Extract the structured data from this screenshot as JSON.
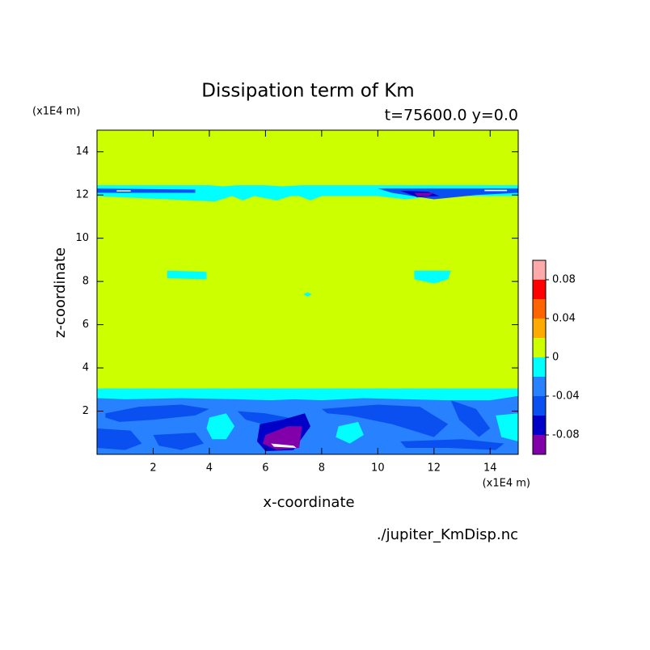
{
  "chart_data": {
    "type": "contour",
    "title": "Dissipation term of Km",
    "subtitle": "t=75600.0 y=0.0",
    "x_label": "x-coordinate",
    "y_label": "z-coordinate",
    "x_unit": "(x1E4 m)",
    "y_unit": "(x1E4 m)",
    "source": "./jupiter_KmDisp.nc",
    "xlim": [
      0,
      15
    ],
    "ylim": [
      0,
      15
    ],
    "xticks": [
      2,
      4,
      6,
      8,
      10,
      12,
      14
    ],
    "yticks": [
      2,
      4,
      6,
      8,
      10,
      12,
      14
    ],
    "background_level": 0.01,
    "levels": [
      -0.1,
      -0.08,
      -0.06,
      -0.04,
      -0.02,
      0,
      0.02,
      0.04,
      0.06,
      0.08,
      0.1
    ],
    "colors": [
      "#8200aa",
      "#0000c8",
      "#0a50f0",
      "#2882ff",
      "#00ffff",
      "#ccff00",
      "#ffaa00",
      "#ff6400",
      "#ff0000",
      "#ffaaaa"
    ],
    "clim": [
      -0.1,
      0.1
    ],
    "cticks": [
      -0.08,
      -0.04,
      0,
      0.04,
      0.08
    ],
    "regions": [
      {
        "level": -0.01,
        "x": [
          0,
          15,
          15,
          13,
          10.5,
          9,
          7.5,
          6.5,
          5,
          3,
          1,
          0
        ],
        "z": [
          3.05,
          3.05,
          0,
          0,
          0,
          0,
          0,
          0,
          0,
          0,
          0,
          0
        ]
      },
      {
        "level": -0.03,
        "x": [
          0,
          1,
          3,
          5,
          6.2,
          7,
          8,
          9.5,
          11,
          12.5,
          14,
          15,
          15,
          0
        ],
        "z": [
          2.6,
          2.55,
          2.6,
          2.55,
          2.5,
          2.55,
          2.5,
          2.6,
          2.55,
          2.5,
          2.5,
          2.7,
          0,
          0
        ]
      },
      {
        "level": -0.01,
        "x": [
          4.0,
          4.6,
          4.9,
          4.6,
          4.1,
          3.9
        ],
        "z": [
          1.7,
          1.9,
          1.3,
          0.7,
          0.7,
          1.2
        ]
      },
      {
        "level": -0.01,
        "x": [
          8.6,
          9.3,
          9.5,
          9.0,
          8.5
        ],
        "z": [
          1.3,
          1.5,
          0.9,
          0.5,
          0.8
        ]
      },
      {
        "level": -0.01,
        "x": [
          14.2,
          15,
          15,
          14.4
        ],
        "z": [
          1.8,
          1.9,
          0.6,
          0.8
        ]
      },
      {
        "level": -0.05,
        "x": [
          0.3,
          1.5,
          3,
          4,
          3.5,
          2,
          0.8,
          0.3
        ],
        "z": [
          1.9,
          2.2,
          2.3,
          2.1,
          1.8,
          1.6,
          1.5,
          1.7
        ]
      },
      {
        "level": -0.05,
        "x": [
          0,
          1.2,
          1.6,
          1.0,
          0
        ],
        "z": [
          1.2,
          1.1,
          0.5,
          0.2,
          0.3
        ]
      },
      {
        "level": -0.05,
        "x": [
          5.0,
          6.0,
          7.2,
          7.6,
          7.2,
          6.2,
          5.3
        ],
        "z": [
          2.0,
          1.9,
          1.6,
          1.2,
          1.0,
          1.3,
          1.6
        ]
      },
      {
        "level": -0.05,
        "x": [
          8.0,
          10,
          11.5,
          12.5,
          12,
          10.5,
          9,
          8.2
        ],
        "z": [
          2.1,
          2.3,
          2.2,
          1.4,
          0.8,
          1.4,
          1.8,
          1.9
        ]
      },
      {
        "level": -0.05,
        "x": [
          12.6,
          13.5,
          14,
          13.6,
          12.9
        ],
        "z": [
          2.5,
          2.1,
          1.2,
          0.8,
          1.6
        ]
      },
      {
        "level": -0.05,
        "x": [
          2.0,
          3.5,
          3.8,
          3.0,
          2.2
        ],
        "z": [
          0.9,
          1.0,
          0.5,
          0.2,
          0.4
        ]
      },
      {
        "level": -0.05,
        "x": [
          10.8,
          13,
          14.5,
          14.2,
          12.5,
          11
        ],
        "z": [
          0.6,
          0.7,
          0.5,
          0.2,
          0.3,
          0.3
        ]
      },
      {
        "level": -0.07,
        "x": [
          5.8,
          6.6,
          7.4,
          7.6,
          7.0,
          6.0,
          5.7
        ],
        "z": [
          1.4,
          1.6,
          1.9,
          1.3,
          0.2,
          0.15,
          0.6
        ]
      },
      {
        "level": -0.09,
        "x": [
          6.0,
          6.8,
          7.3,
          7.2,
          6.4,
          5.9
        ],
        "z": [
          0.9,
          1.3,
          1.3,
          0.3,
          0.2,
          0.5
        ]
      },
      {
        "level": -0.11,
        "x": [
          6.2,
          7.0,
          7.1,
          6.3
        ],
        "z": [
          0.5,
          0.4,
          0.3,
          0.35
        ]
      },
      {
        "level": -0.01,
        "x": [
          0,
          4,
          4.5,
          5,
          6,
          6.6,
          7.3,
          7.8,
          10,
          15,
          15,
          12,
          11,
          10,
          8,
          7.6,
          7.2,
          6.9,
          6.4,
          5.6,
          5.2,
          4.8,
          4.2,
          0
        ],
        "z": [
          12.45,
          12.45,
          12.4,
          12.45,
          12.45,
          12.4,
          12.45,
          12.45,
          12.45,
          12.45,
          11.95,
          11.95,
          11.8,
          11.95,
          11.95,
          11.75,
          11.95,
          11.95,
          11.75,
          11.95,
          11.75,
          11.95,
          11.7,
          11.95
        ]
      },
      {
        "level": -0.05,
        "x": [
          0,
          3.5,
          3.5,
          0
        ],
        "z": [
          12.3,
          12.25,
          12.1,
          12.1
        ]
      },
      {
        "level": -0.05,
        "x": [
          10.0,
          15,
          15,
          13.5,
          12,
          10.5
        ],
        "z": [
          12.3,
          12.3,
          12.1,
          12.0,
          11.8,
          12.1
        ]
      },
      {
        "level": -0.07,
        "x": [
          10.8,
          11.8,
          12.2,
          11.4
        ],
        "z": [
          12.2,
          12.15,
          11.95,
          11.9
        ]
      },
      {
        "level": -0.09,
        "x": [
          11.3,
          12.0,
          11.8,
          11.4
        ],
        "z": [
          12.1,
          12.1,
          11.95,
          11.95
        ]
      },
      {
        "level": -0.11,
        "x": [
          0.7,
          1.2,
          1.2,
          0.7
        ],
        "z": [
          12.22,
          12.22,
          12.16,
          12.16
        ]
      },
      {
        "level": -0.11,
        "x": [
          13.8,
          14.6,
          14.6,
          13.8
        ],
        "z": [
          12.24,
          12.24,
          12.18,
          12.18
        ]
      },
      {
        "level": -0.01,
        "x": [
          2.5,
          3.9,
          3.9,
          2.5
        ],
        "z": [
          8.5,
          8.45,
          8.1,
          8.15
        ]
      },
      {
        "level": -0.01,
        "x": [
          11.3,
          12.6,
          12.5,
          12.0,
          11.3
        ],
        "z": [
          8.5,
          8.5,
          8.1,
          7.9,
          8.1
        ]
      },
      {
        "level": -0.01,
        "x": [
          7.35,
          7.5,
          7.65,
          7.5
        ],
        "z": [
          7.4,
          7.5,
          7.4,
          7.3
        ]
      }
    ]
  }
}
